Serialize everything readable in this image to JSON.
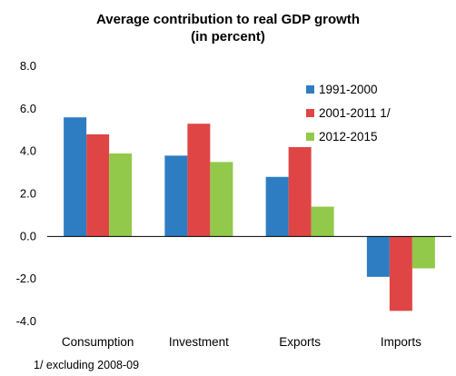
{
  "chart_data": {
    "type": "bar",
    "title": "Average contribution to real GDP growth",
    "subtitle": "(in percent)",
    "categories": [
      "Consumption",
      "Investment",
      "Exports",
      "Imports"
    ],
    "series": [
      {
        "name": "1991-2000",
        "color": "#2E7DC3",
        "values": [
          5.6,
          3.8,
          2.8,
          -1.9
        ]
      },
      {
        "name": "2001-2011 1/",
        "color": "#E04545",
        "values": [
          4.8,
          5.3,
          4.2,
          -3.5
        ]
      },
      {
        "name": "2012-2015",
        "color": "#92C94A",
        "values": [
          3.9,
          3.5,
          1.4,
          -1.5
        ]
      }
    ],
    "ylim": [
      -4.0,
      8.0
    ],
    "yticks": [
      "8.0",
      "6.0",
      "4.0",
      "2.0",
      "0.0",
      "-2.0",
      "-4.0"
    ],
    "legend_position": "top-right",
    "grid": false,
    "footnote": "1/ excluding 2008-09"
  }
}
